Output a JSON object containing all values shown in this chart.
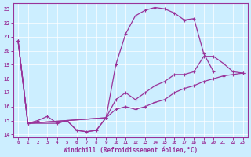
{
  "xlabel": "Windchill (Refroidissement éolien,°C)",
  "bg_color": "#cceeff",
  "line_color": "#993399",
  "xlim": [
    -0.5,
    23.5
  ],
  "ylim": [
    13.8,
    23.4
  ],
  "xticks": [
    0,
    1,
    2,
    3,
    4,
    5,
    6,
    7,
    8,
    9,
    10,
    11,
    12,
    13,
    14,
    15,
    16,
    17,
    18,
    19,
    20,
    21,
    22,
    23
  ],
  "yticks": [
    14,
    15,
    16,
    17,
    18,
    19,
    20,
    21,
    22,
    23
  ],
  "line1_x": [
    0,
    1,
    2,
    3,
    4,
    5,
    6,
    7,
    8,
    9,
    10,
    11,
    12,
    13,
    14,
    15,
    16,
    17,
    18,
    19,
    20
  ],
  "line1_y": [
    20.7,
    14.8,
    15.0,
    15.3,
    14.8,
    15.0,
    14.3,
    14.2,
    14.3,
    15.2,
    19.0,
    21.2,
    22.5,
    22.9,
    23.1,
    23.0,
    22.7,
    22.2,
    22.3,
    19.8,
    18.5
  ],
  "line2_x": [
    0,
    1,
    9,
    10,
    11,
    12,
    13,
    14,
    15,
    16,
    17,
    18,
    19,
    20,
    21,
    22,
    23
  ],
  "line2_y": [
    20.7,
    14.8,
    15.2,
    16.5,
    17.0,
    16.5,
    17.0,
    17.5,
    17.8,
    18.3,
    18.3,
    18.5,
    19.6,
    19.6,
    19.1,
    18.5,
    18.4
  ],
  "line3_x": [
    0,
    1,
    9,
    10,
    11,
    12,
    13,
    14,
    15,
    16,
    17,
    18,
    19,
    20,
    21,
    22,
    23
  ],
  "line3_y": [
    20.7,
    14.8,
    15.2,
    15.8,
    16.0,
    15.8,
    16.0,
    16.3,
    16.5,
    17.0,
    17.3,
    17.5,
    17.8,
    18.0,
    18.2,
    18.3,
    18.4
  ],
  "line4_x": [
    0,
    1,
    4,
    5,
    6,
    7,
    8,
    9
  ],
  "line4_y": [
    20.7,
    14.8,
    14.8,
    15.0,
    14.3,
    14.2,
    14.3,
    15.2
  ]
}
